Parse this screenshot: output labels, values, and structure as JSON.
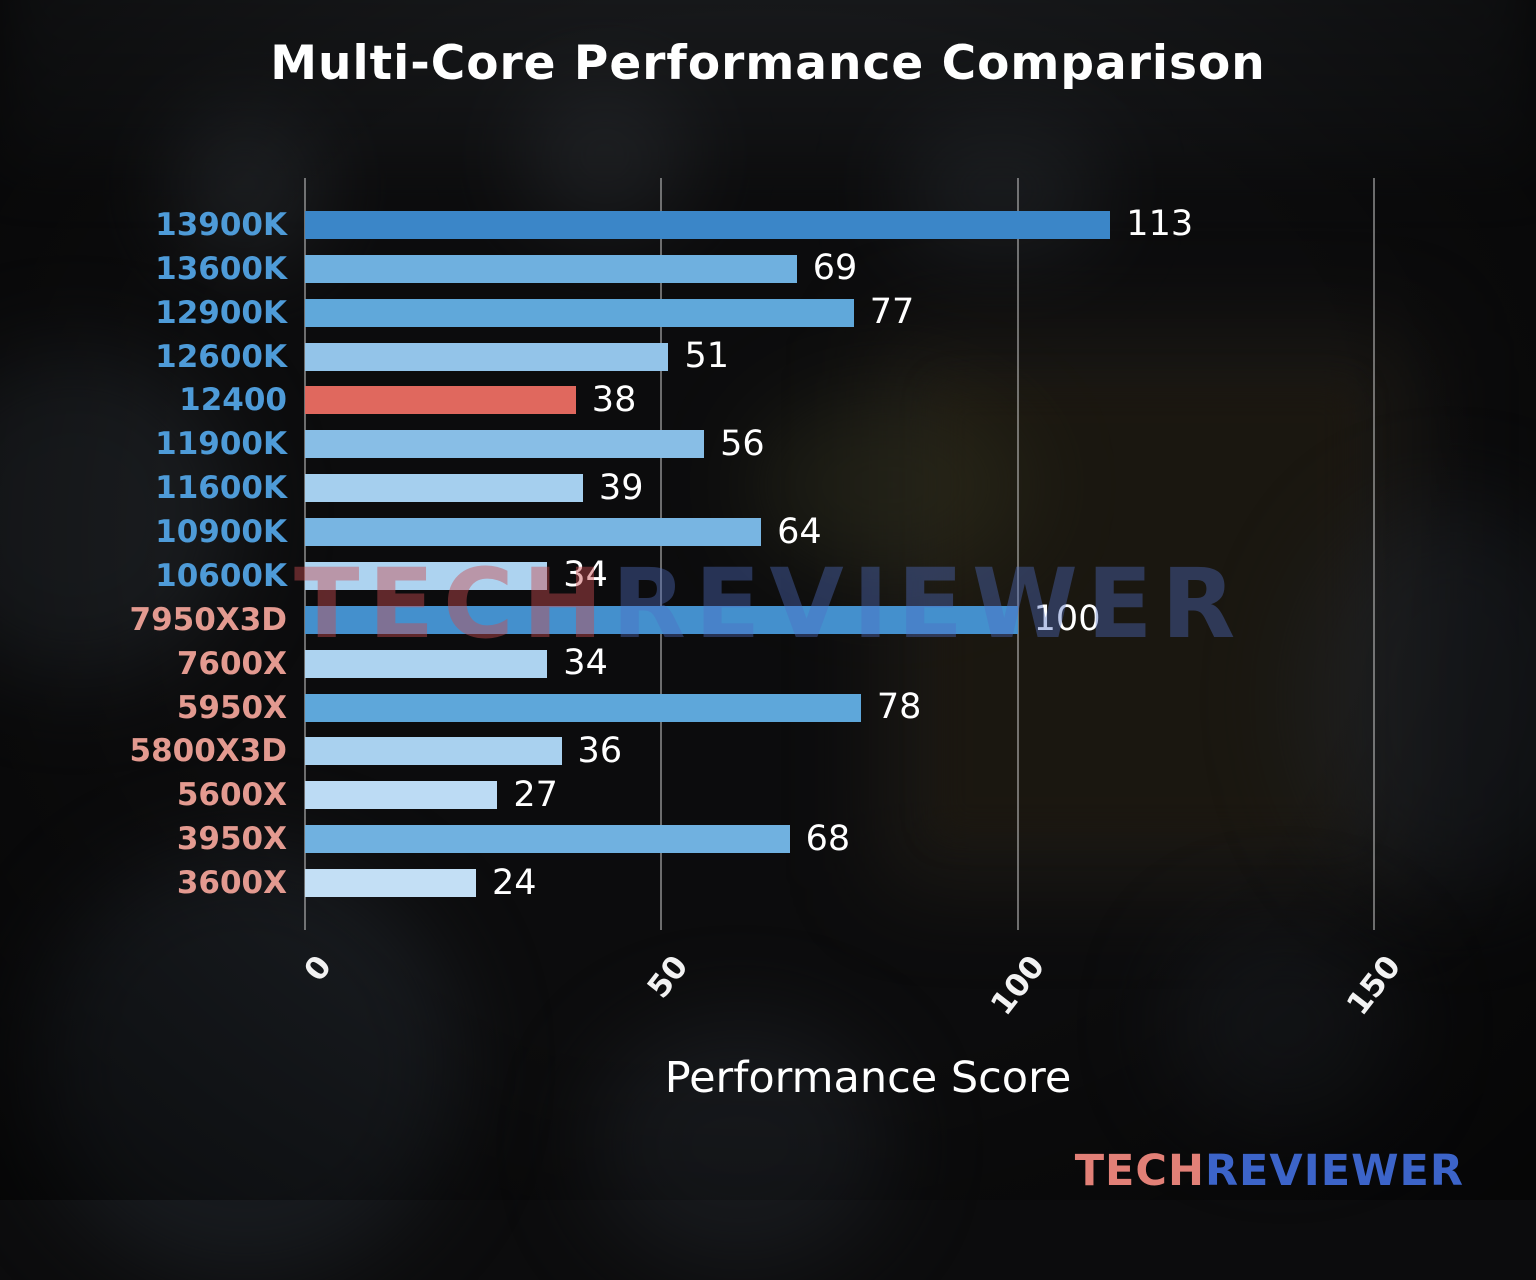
{
  "title": "Multi-Core Performance Comparison",
  "watermark": {
    "part1": "TECH",
    "part2": "REVIEWER"
  },
  "logo": {
    "part1": "TECH",
    "part2": "REVIEWER"
  },
  "colors": {
    "title_text": "#ffffff",
    "value_text": "#ffffff",
    "intel_label": "#4e9bd8",
    "amd_label": "#e39a90",
    "highlight_bar": "#e0685e",
    "gridline": "#cdcdcd",
    "logo_tech": "#e28077",
    "logo_reviewer": "#3c64c9"
  },
  "chart_data": {
    "type": "bar",
    "orientation": "horizontal",
    "title": "Multi-Core Performance Comparison",
    "xlabel": "Performance Score",
    "xlim": [
      0,
      158
    ],
    "xticks": [
      0,
      50,
      100,
      150
    ],
    "grid": true,
    "background": "blurred dark motherboard/CPU photo",
    "categories": [
      "13900K",
      "13600K",
      "12900K",
      "12600K",
      "12400",
      "11900K",
      "11600K",
      "10900K",
      "10600K",
      "7950X3D",
      "7600X",
      "5950X",
      "5800X3D",
      "5600X",
      "3950X",
      "3600X"
    ],
    "values": [
      113,
      69,
      77,
      51,
      38,
      56,
      39,
      64,
      34,
      100,
      34,
      78,
      36,
      27,
      68,
      24
    ],
    "rows": [
      {
        "label": "13900K",
        "value": 113,
        "bar_color": "#3b86c8",
        "label_color": "#4e9bd8"
      },
      {
        "label": "13600K",
        "value": 69,
        "bar_color": "#6fb0df",
        "label_color": "#4e9bd8"
      },
      {
        "label": "12900K",
        "value": 77,
        "bar_color": "#60a8da",
        "label_color": "#4e9bd8"
      },
      {
        "label": "12600K",
        "value": 51,
        "bar_color": "#93c4e9",
        "label_color": "#4e9bd8"
      },
      {
        "label": "12400",
        "value": 38,
        "bar_color": "#e0685e",
        "label_color": "#4e9bd8"
      },
      {
        "label": "11900K",
        "value": 56,
        "bar_color": "#88bee6",
        "label_color": "#4e9bd8"
      },
      {
        "label": "11600K",
        "value": 39,
        "bar_color": "#a5cfee",
        "label_color": "#4e9bd8"
      },
      {
        "label": "10900K",
        "value": 64,
        "bar_color": "#78b5e2",
        "label_color": "#4e9bd8"
      },
      {
        "label": "10600K",
        "value": 34,
        "bar_color": "#add3f0",
        "label_color": "#4e9bd8"
      },
      {
        "label": "7950X3D",
        "value": 100,
        "bar_color": "#4490cd",
        "label_color": "#e39a90"
      },
      {
        "label": "7600X",
        "value": 34,
        "bar_color": "#add3f0",
        "label_color": "#e39a90"
      },
      {
        "label": "5950X",
        "value": 78,
        "bar_color": "#5ea7da",
        "label_color": "#e39a90"
      },
      {
        "label": "5800X3D",
        "value": 36,
        "bar_color": "#a9d1ef",
        "label_color": "#e39a90"
      },
      {
        "label": "5600X",
        "value": 27,
        "bar_color": "#bcdbf4",
        "label_color": "#e39a90"
      },
      {
        "label": "3950X",
        "value": 68,
        "bar_color": "#70b1e0",
        "label_color": "#e39a90"
      },
      {
        "label": "3600X",
        "value": 24,
        "bar_color": "#c3dff5",
        "label_color": "#e39a90"
      }
    ]
  }
}
